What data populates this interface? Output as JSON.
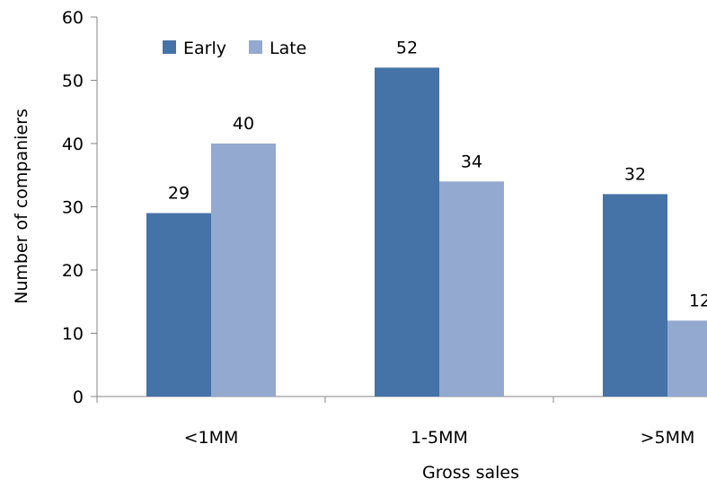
{
  "chart_data": {
    "type": "bar",
    "categories": [
      "<1MM",
      "1-5MM",
      ">5MM"
    ],
    "series": [
      {
        "name": "Early",
        "values": [
          29,
          52,
          32
        ],
        "color": "#4572A7"
      },
      {
        "name": "Late",
        "values": [
          40,
          34,
          12
        ],
        "color": "#93A9CF"
      }
    ],
    "yticks": [
      "0",
      "10",
      "20",
      "30",
      "40",
      "50",
      "60"
    ],
    "data_labels": [
      [
        "29",
        "52",
        "32"
      ],
      [
        "40",
        "34",
        "12"
      ]
    ],
    "xlabel": "Gross sales",
    "ylabel": "Number of companiers",
    "ylim": [
      0,
      60
    ],
    "grid": false,
    "legend_position": "top-left"
  }
}
